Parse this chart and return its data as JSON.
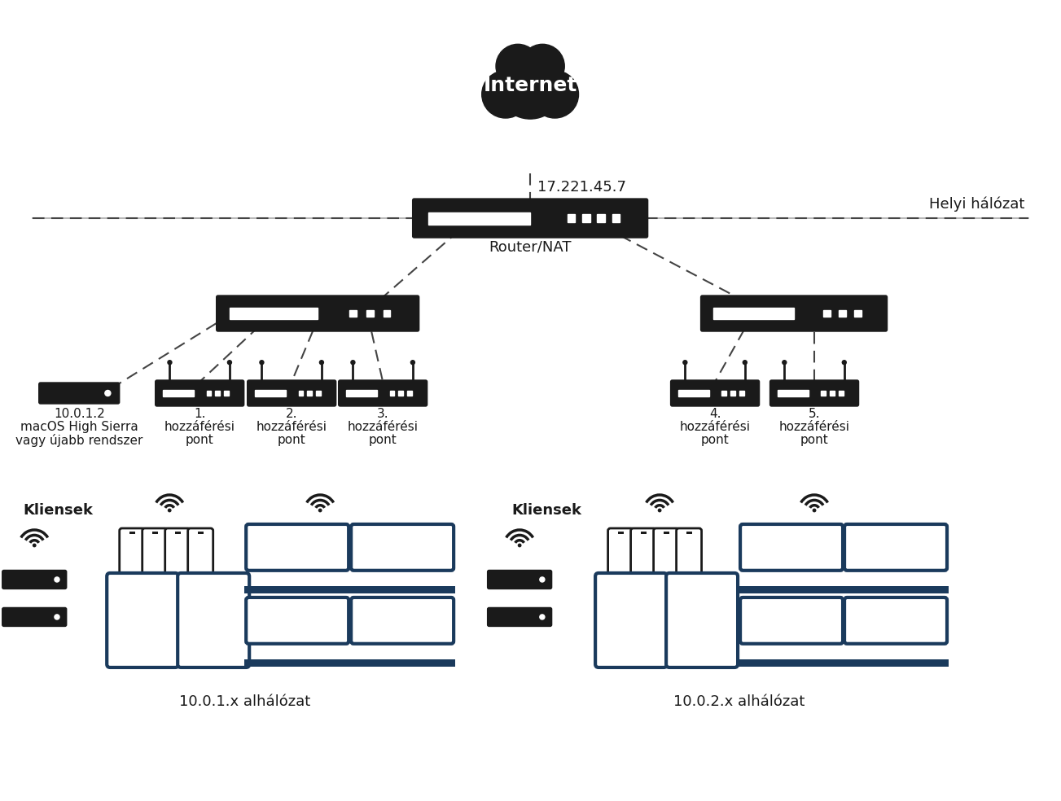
{
  "bg_color": "#ffffff",
  "text_color": "#1a1a1a",
  "device_color": "#1a1a1a",
  "cloud_color": "#1a1a1a",
  "line_color": "#555555",
  "ip_label": "17.221.45.7",
  "router_label": "Router/NAT",
  "local_net_label": "Helyi hálózat",
  "internet_label": "Internet",
  "mac_line1": "10.0.1.2",
  "mac_line2": "macOS High Sierra",
  "mac_line3": "vagy újabb rendszer",
  "subnet1_label": "10.0.1.x alhálózat",
  "subnet2_label": "10.0.2.x alhálózat",
  "clients_label": "Kliensek",
  "ap_labels_line1": [
    "1.",
    "2.",
    "3.",
    "4.",
    "5."
  ],
  "ap_labels_line2": [
    "hozzáférési",
    "hozzáférési",
    "hozzáférési",
    "hozzáférési",
    "hozzáférési"
  ],
  "ap_labels_line3": [
    "pont",
    "pont",
    "pont",
    "pont",
    "pont"
  ],
  "device_dark": "#1a3a5c"
}
